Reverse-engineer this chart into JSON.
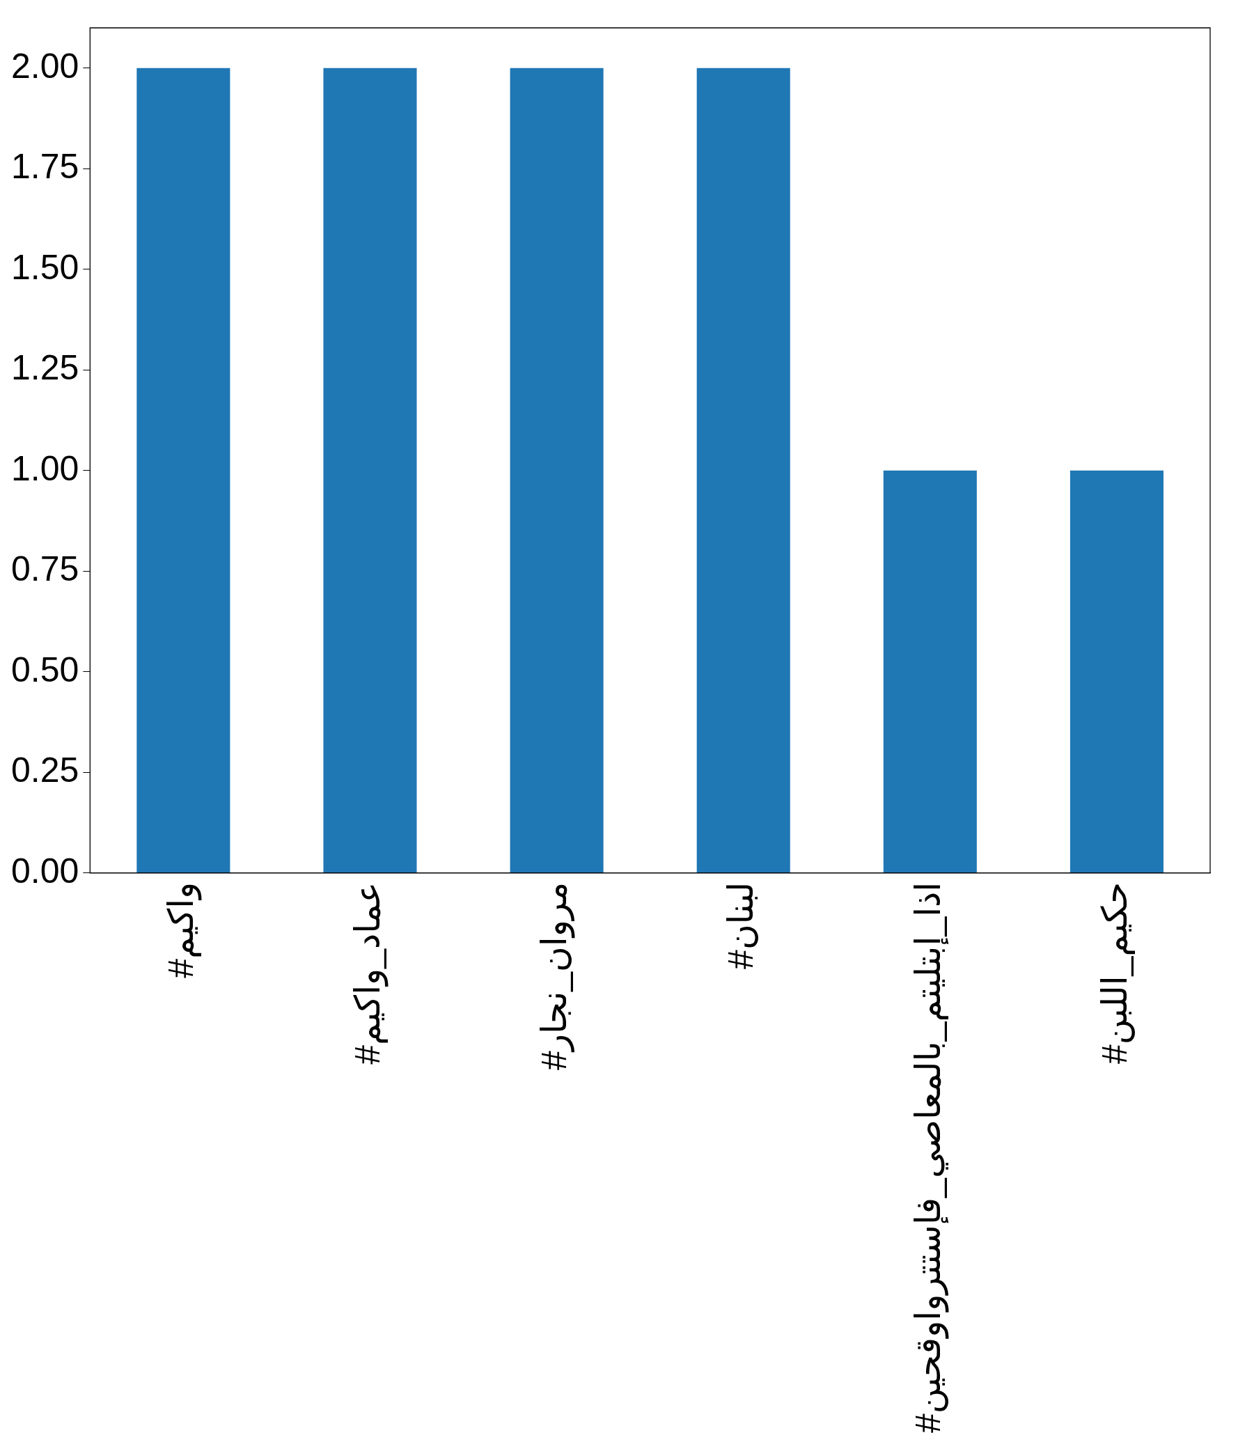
{
  "chart_data": {
    "type": "bar",
    "categories": [
      "#واكيم",
      "#عماد_واكيم",
      "#مروان_نجار",
      "#لبنان",
      "#اذا_إبتليتم_بالمعاصي_فإستترواوقحين",
      "#حكيم_اللبن"
    ],
    "values": [
      2,
      2,
      2,
      2,
      1,
      1
    ],
    "color": "#1f77b4",
    "ylim": [
      0,
      2.1
    ],
    "yticks": [
      {
        "value": 0,
        "label": "0.00"
      },
      {
        "value": 0.25,
        "label": "0.25"
      },
      {
        "value": 0.5,
        "label": "0.50"
      },
      {
        "value": 0.75,
        "label": "0.75"
      },
      {
        "value": 1,
        "label": "1.00"
      },
      {
        "value": 1.25,
        "label": "1.25"
      },
      {
        "value": 1.5,
        "label": "1.50"
      },
      {
        "value": 1.75,
        "label": "1.75"
      },
      {
        "value": 2,
        "label": "2.00"
      }
    ],
    "grid": false,
    "legend": false
  }
}
